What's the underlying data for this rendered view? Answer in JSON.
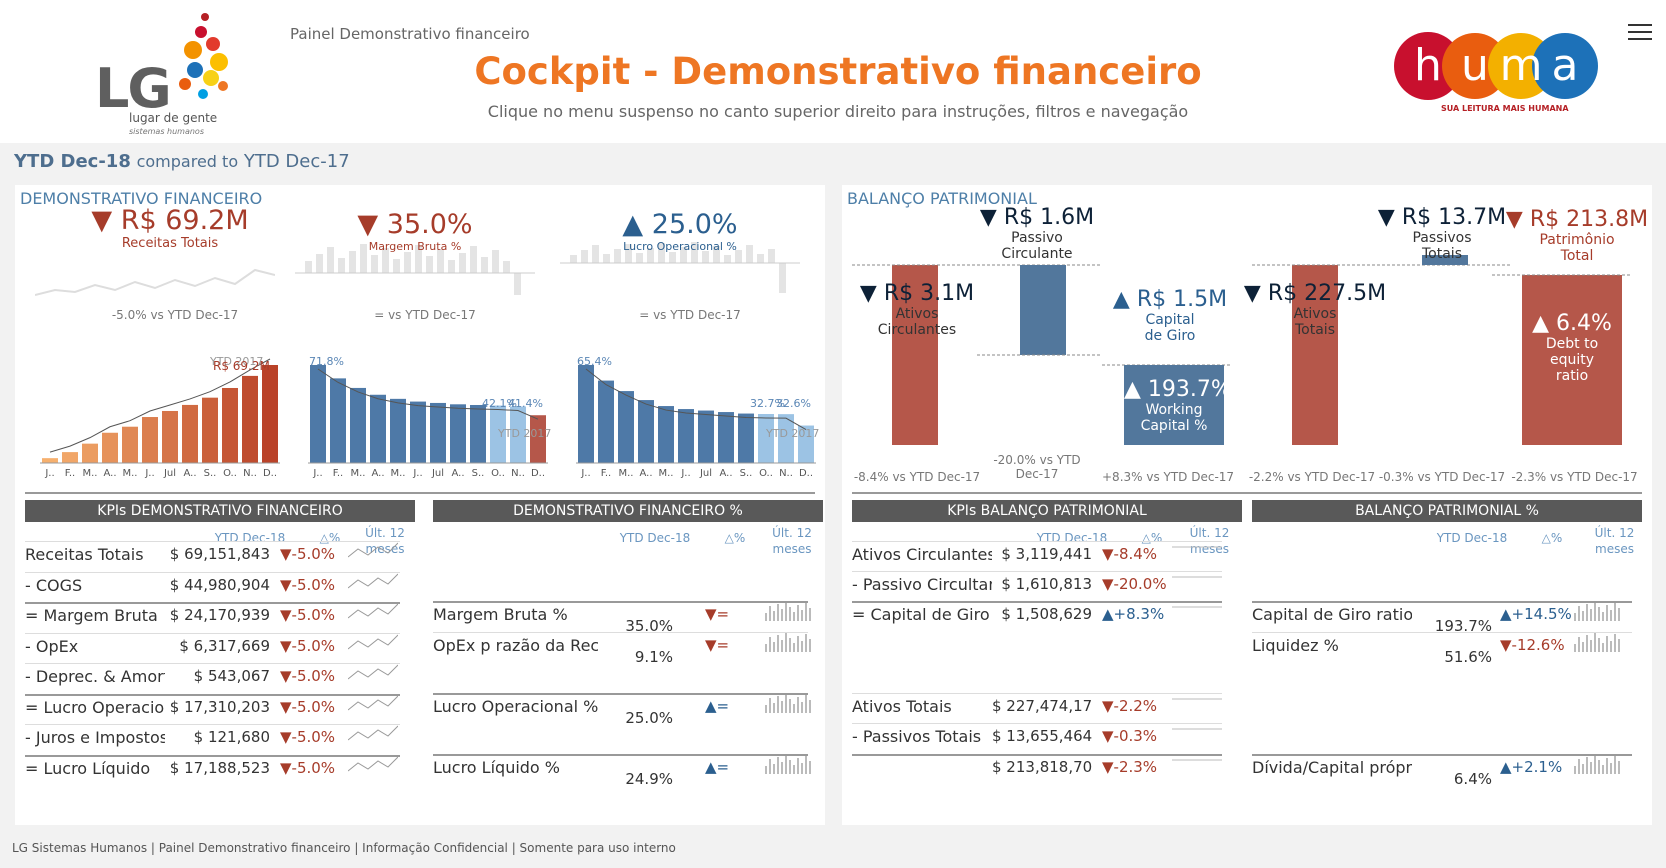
{
  "header": {
    "logo_word": "LG",
    "logo_line1": "lugar de gente",
    "logo_line2": "sistemas humanos",
    "small_title": "Painel Demonstrativo financeiro",
    "title": "Cockpit - Demonstrativo financeiro",
    "subtitle": "Clique no menu suspenso no canto superior direito para instruções, filtros e navegação",
    "huma_letters": [
      "h",
      "u",
      "m",
      "a"
    ],
    "huma_tagline": "SUA LEITURA MAIS HUMANA"
  },
  "period": {
    "current": "YTD Dec-18",
    "compared_text": "compared to",
    "previous": "YTD Dec-17"
  },
  "colors": {
    "orange": "#ee7623",
    "red": "#a63c2a",
    "blue": "#2b5f8f",
    "navy": "#0d2137",
    "bar_blue": "#4e79a7",
    "bar_light": "#9cc3e4",
    "bar_red": "#b5574a"
  },
  "left_panel": {
    "title": "DEMONSTRATIVO FINANCEIRO",
    "kpis": [
      {
        "arrow": "▼",
        "value": "R$ 69.2M",
        "label": "Receitas Totais",
        "compare": "-5.0% vs YTD Dec-17",
        "tone": "red"
      },
      {
        "arrow": "▼",
        "value": "35.0%",
        "label": "Margem Bruta %",
        "compare": "= vs YTD Dec-17",
        "tone": "red"
      },
      {
        "arrow": "▲",
        "value": "25.0%",
        "label": "Lucro Operacional %",
        "compare": "= vs YTD Dec-17",
        "tone": "blue"
      }
    ],
    "charts": [
      {
        "type": "bar",
        "categories": [
          "J..",
          "F..",
          "M..",
          "A..",
          "M..",
          "J..",
          "Jul",
          "A..",
          "S..",
          "O..",
          "N..",
          "D.."
        ],
        "values": [
          0.4,
          0.9,
          1.6,
          2.5,
          3.0,
          3.8,
          4.3,
          4.8,
          5.4,
          6.2,
          7.2,
          8.1
        ],
        "labels": {
          "top_value": "R$ 69.2M",
          "ref_label": "YTD 2017"
        }
      },
      {
        "type": "bar",
        "categories": [
          "J..",
          "F..",
          "M..",
          "A..",
          "M..",
          "J..",
          "Jul",
          "A..",
          "S..",
          "O..",
          "N..",
          "D.."
        ],
        "values": [
          71.8,
          62,
          55,
          50,
          47,
          45,
          44,
          43,
          42.5,
          42.1,
          41.4,
          35
        ],
        "labels": {
          "first": "71.8%",
          "mid1": "42.1%",
          "mid2": "41.4%",
          "ref_label": "YTD 2017"
        }
      },
      {
        "type": "bar",
        "categories": [
          "J..",
          "F..",
          "M..",
          "A..",
          "M..",
          "J..",
          "Jul",
          "A..",
          "S..",
          "O..",
          "N..",
          "D.."
        ],
        "values": [
          65.4,
          55,
          48,
          42,
          38,
          36,
          35,
          34,
          33,
          32.7,
          32.6,
          25
        ],
        "labels": {
          "first": "65.4%",
          "mid1": "32.7%",
          "mid2": "32.6%",
          "ref_label": "YTD 2017"
        }
      }
    ],
    "kpi_table": {
      "title": "KPIs DEMONSTRATIVO FINANCEIRO",
      "col_period": "YTD Dec-18",
      "col_delta": "△%",
      "col_last": "Últ. 12 meses",
      "rows": [
        {
          "label": "Receitas Totais",
          "value": "$ 69,151,843",
          "delta": "▼-5.0%"
        },
        {
          "label": "- COGS",
          "value": "$ 44,980,904",
          "delta": "▼-5.0%"
        },
        {
          "label": "= Margem Bruta",
          "value": "$ 24,170,939",
          "delta": "▼-5.0%"
        },
        {
          "label": "- OpEx",
          "value": "$ 6,317,669",
          "delta": "▼-5.0%"
        },
        {
          "label": "- Deprec. & Amort.",
          "value": "$ 543,067",
          "delta": "▼-5.0%"
        },
        {
          "label": "= Lucro Operacional",
          "value": "$ 17,310,203",
          "delta": "▼-5.0%"
        },
        {
          "label": "- Juros e Impostos",
          "value": "$ 121,680",
          "delta": "▼-5.0%"
        },
        {
          "label": "= Lucro Líquido",
          "value": "$ 17,188,523",
          "delta": "▼-5.0%"
        }
      ]
    },
    "pct_table": {
      "title": "DEMONSTRATIVO FINANCEIRO %",
      "col_period": "YTD Dec-18",
      "col_delta": "△%",
      "col_last": "Últ. 12 meses",
      "rows": [
        {
          "label": "Margem Bruta %",
          "value": "35.0%",
          "delta": "▼="
        },
        {
          "label": "OpEx p razão da Receita",
          "value": "9.1%",
          "delta": "▼="
        },
        {
          "label": "Lucro Operacional %",
          "value": "25.0%",
          "delta": "▲="
        },
        {
          "label": "Lucro Líquido %",
          "value": "24.9%",
          "delta": "▲="
        }
      ]
    }
  },
  "right_panel": {
    "title": "BALANÇO PATRIMONIAL",
    "waterfall1": {
      "items": [
        {
          "arrow": "▼",
          "value": "R$ 3.1M",
          "label1": "Ativos",
          "label2": "Circulantes",
          "compare": "-8.4% vs YTD Dec-17"
        },
        {
          "arrow": "▼",
          "value": "R$ 1.6M",
          "label1": "Passivo",
          "label2": "Circulante",
          "compare1": "-20.0% vs YTD",
          "compare2": "Dec-17"
        },
        {
          "arrow": "▲",
          "value": "R$ 1.5M",
          "label1": "Capital",
          "label2": "de Giro",
          "compare": "+8.3% vs YTD Dec-17"
        }
      ],
      "inner": {
        "arrow": "▲",
        "value": "193.7%",
        "label1": "Working",
        "label2": "Capital %"
      }
    },
    "waterfall2": {
      "items": [
        {
          "arrow": "▼",
          "value": "R$ 227.5M",
          "label1": "Ativos",
          "label2": "Totais",
          "compare": "-2.2% vs YTD Dec-17"
        },
        {
          "arrow": "▼",
          "value": "R$ 13.7M",
          "label1": "Passivos",
          "label2": "Totais",
          "compare": "-0.3% vs YTD Dec-17"
        },
        {
          "arrow": "▼",
          "value": "R$ 213.8M",
          "label1": "Patrimônio",
          "label2": "Total",
          "compare": "-2.3% vs YTD Dec-17"
        }
      ],
      "inner": {
        "arrow": "▲",
        "value": "6.4%",
        "label1": "Debt to",
        "label2": "equity",
        "label3": "ratio"
      }
    },
    "kpi_table": {
      "title": "KPIs BALANÇO PATRIMONIAL",
      "col_period": "YTD Dec-18",
      "col_delta": "△%",
      "col_last": "Últ. 12 meses",
      "rows": [
        {
          "label": "Ativos Circulantes",
          "value": "$ 3,119,441",
          "delta": "▼-8.4%"
        },
        {
          "label": "- Passivo Circultante",
          "value": "$ 1,610,813",
          "delta": "▼-20.0%"
        },
        {
          "label": "= Capital de Giro",
          "value": "$ 1,508,629",
          "delta": "▲+8.3%"
        },
        {
          "label": "Ativos Totais",
          "value": "$ 227,474,172",
          "delta": "▼-2.2%"
        },
        {
          "label": "- Passivos Totais",
          "value": "$ 13,655,464",
          "delta": "▼-0.3%"
        },
        {
          "label": "",
          "value": "$ 213,818,708",
          "delta": "▼-2.3%"
        }
      ]
    },
    "pct_table": {
      "title": "BALANÇO PATRIMONIAL %",
      "col_period": "YTD Dec-18",
      "col_delta": "△%",
      "col_last": "Últ. 12 meses",
      "rows": [
        {
          "label": "Capital de Giro ratio",
          "value": "193.7%",
          "delta": "▲+14.5%"
        },
        {
          "label": "Liquidez %",
          "value": "51.6%",
          "delta": "▼-12.6%"
        },
        {
          "label": "Dívida/Capital próprio",
          "value": "6.4%",
          "delta": "▲+2.1%"
        }
      ]
    }
  },
  "footer": "LG Sistemas Humanos | Painel Demonstrativo financeiro  | Informação Confidencial | Somente para uso interno"
}
